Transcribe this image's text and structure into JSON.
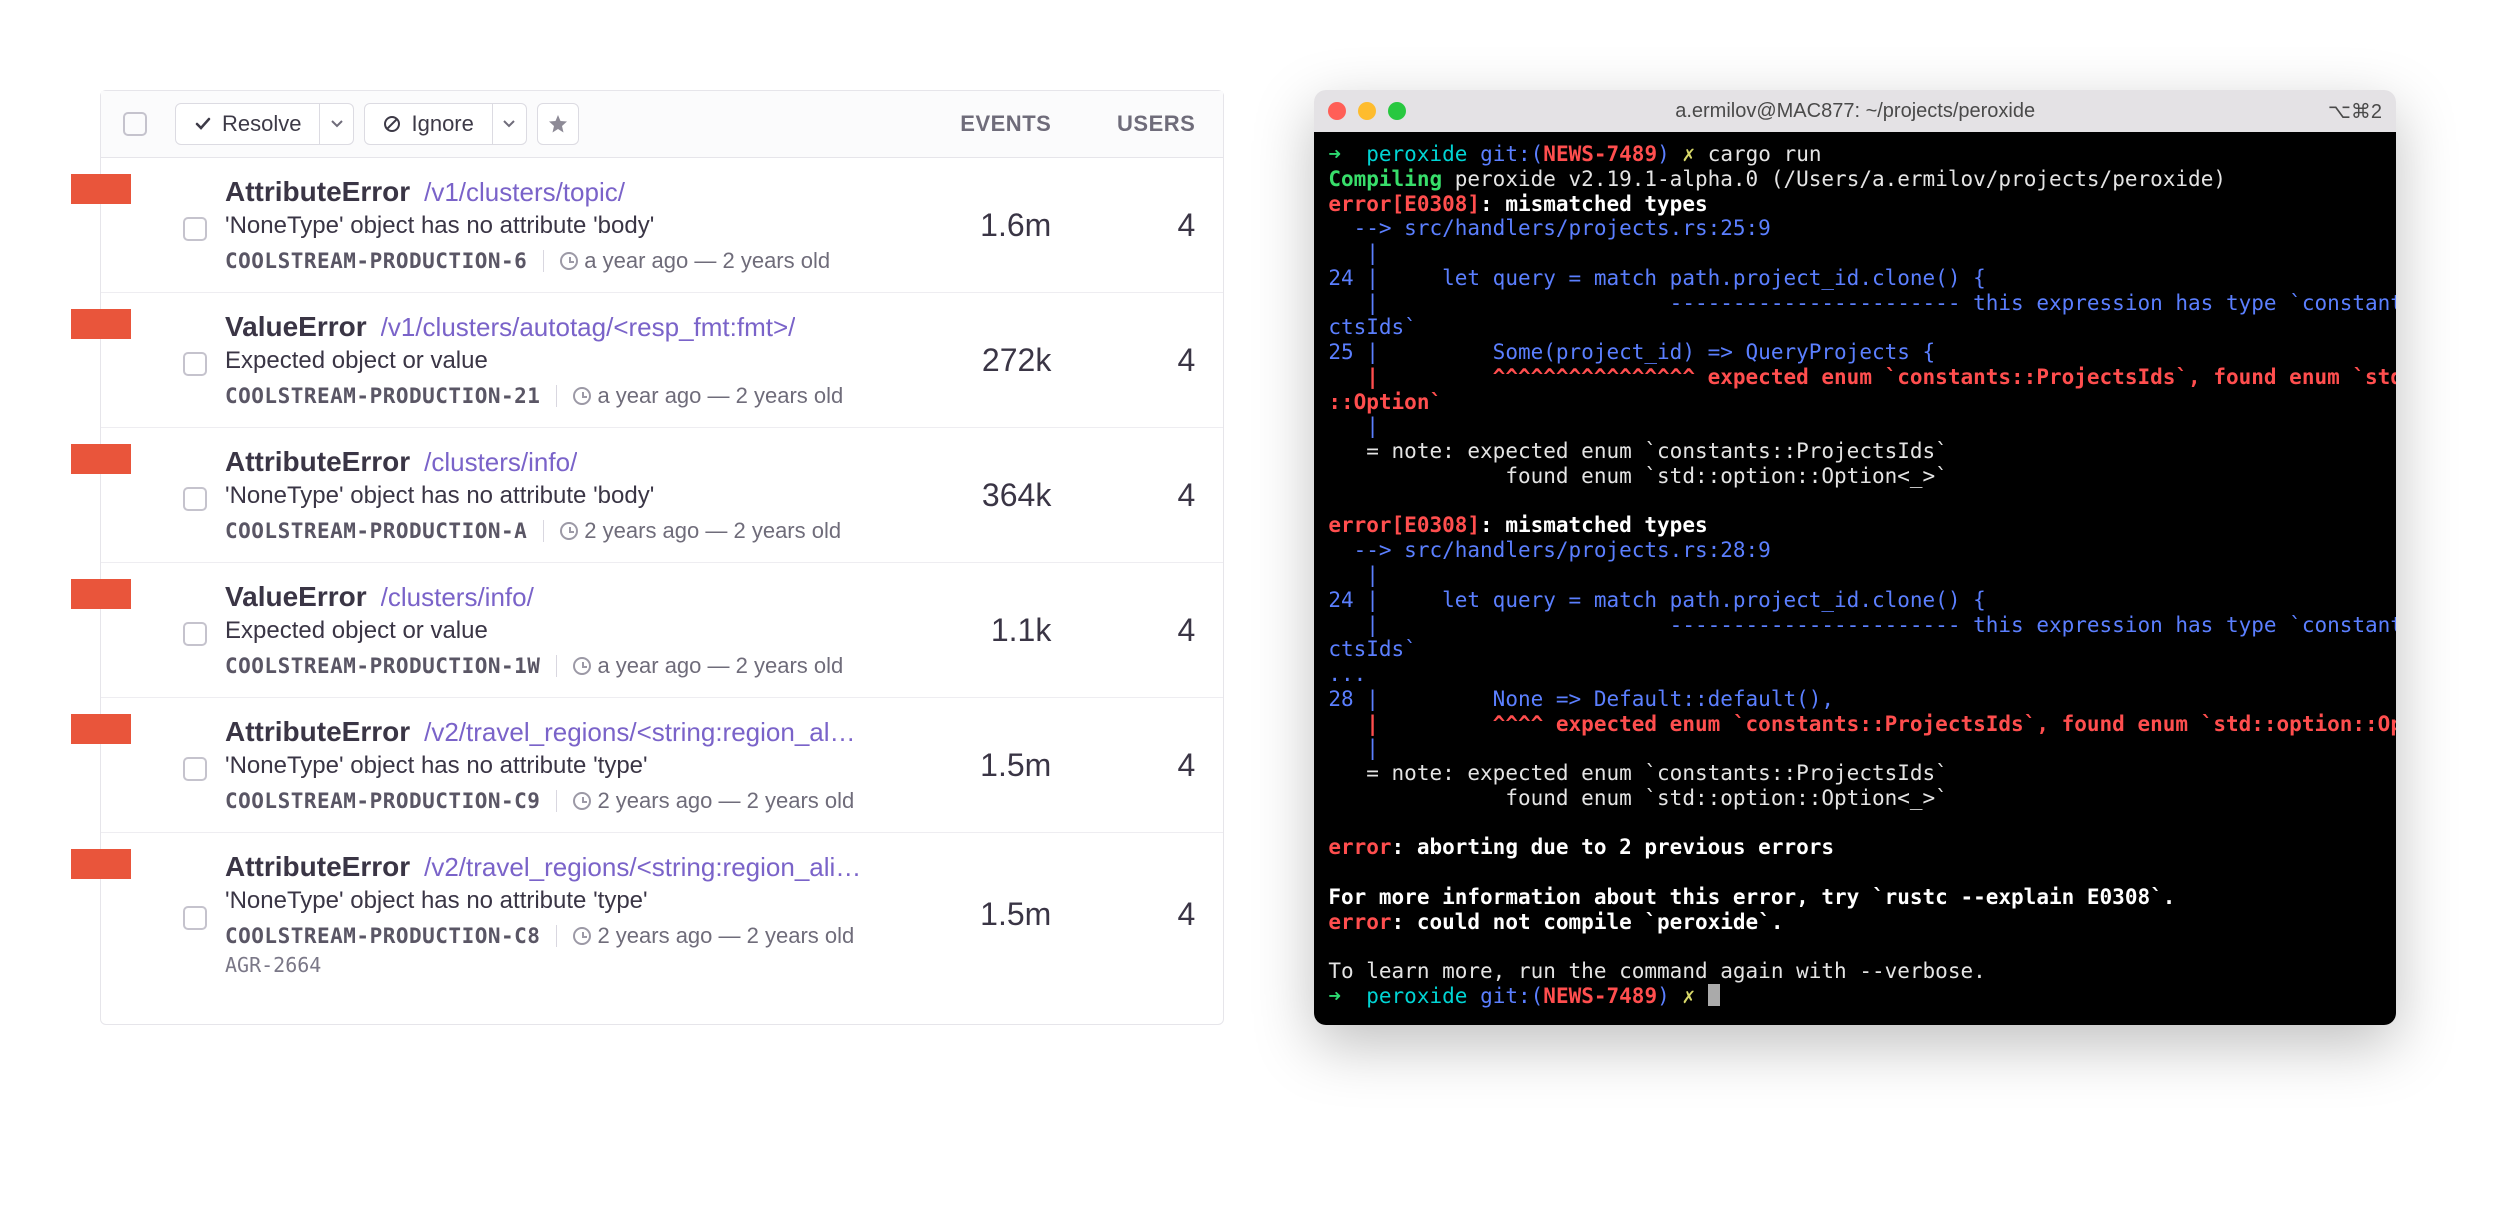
{
  "colors": {
    "red_bar": "#e9553b",
    "border": "#e6e5ea",
    "text_primary": "#3a3545",
    "text_muted": "#6f6c7a",
    "path_link": "#7a63c9",
    "term_bg": "#000000",
    "term_green": "#2cd96f",
    "term_cyan": "#00d4d4",
    "term_red": "#ff4e4e",
    "term_yellow": "#d9d96a",
    "term_blue": "#5b7fff",
    "dot_red": "#ff5f57",
    "dot_yellow": "#febc2e",
    "dot_green": "#28c840"
  },
  "left_panel": {
    "header": {
      "resolve_label": "Resolve",
      "ignore_label": "Ignore",
      "events_label": "EVENTS",
      "users_label": "USERS"
    },
    "issues": [
      {
        "error": "AttributeError",
        "path": "/v1/clusters/topic/",
        "message": "'NoneType' object has no attribute 'body'",
        "env": "COOLSTREAM-PRODUCTION-6",
        "time": "a year ago — 2 years old",
        "events": "1.6m",
        "users": "4"
      },
      {
        "error": "ValueError",
        "path": "/v1/clusters/autotag/<resp_fmt:fmt>/",
        "message": "Expected object or value",
        "env": "COOLSTREAM-PRODUCTION-21",
        "time": "a year ago — 2 years old",
        "events": "272k",
        "users": "4"
      },
      {
        "error": "AttributeError",
        "path": "/clusters/info/",
        "message": "'NoneType' object has no attribute 'body'",
        "env": "COOLSTREAM-PRODUCTION-A",
        "time": "2 years ago — 2 years old",
        "events": "364k",
        "users": "4"
      },
      {
        "error": "ValueError",
        "path": "/clusters/info/",
        "message": "Expected object or value",
        "env": "COOLSTREAM-PRODUCTION-1W",
        "time": "a year ago — 2 years old",
        "events": "1.1k",
        "users": "4"
      },
      {
        "error": "AttributeError",
        "path": "/v2/travel_regions/<string:region_al…",
        "message": "'NoneType' object has no attribute 'type'",
        "env": "COOLSTREAM-PRODUCTION-C9",
        "time": "2 years ago — 2 years old",
        "events": "1.5m",
        "users": "4"
      },
      {
        "error": "AttributeError",
        "path": "/v2/travel_regions/<string:region_ali…",
        "message": "'NoneType' object has no attribute 'type'",
        "env": "COOLSTREAM-PRODUCTION-C8",
        "time": "2 years ago — 2 years old",
        "events": "1.5m",
        "users": "4",
        "extra": "AGR-2664"
      }
    ]
  },
  "terminal": {
    "title": "a.ermilov@MAC877: ~/projects/peroxide",
    "shortcut": "⌥⌘2",
    "prompt_dir": "peroxide",
    "prompt_git": "git:",
    "prompt_branch": "NEWS-7489",
    "prompt_dirty": "✗",
    "cmd": "cargo run",
    "compiling_label": "Compiling",
    "compiling_rest": " peroxide v2.19.1-alpha.0 (/Users/a.ermilov/projects/peroxide)",
    "err_code": "error[E0308]",
    "err_msg": ": mismatched types",
    "loc1": "  --> src/handlers/projects.rs:25:9",
    "line24_a": "24 |     let query = match path.project_id.clone() {",
    "line24_b": "   |                       ----------------------- this expression has type `constants::Proje",
    "ctsids": "ctsIds`",
    "line25_a": "25 |         Some(project_id) => QueryProjects {",
    "line25_b": "   |         ^^^^^^^^^^^^^^^^ expected enum `constants::ProjectsIds`, found enum `std::option",
    "option": "::Option`",
    "note1": "   = note: expected enum `constants::ProjectsIds`",
    "note2": "              found enum `std::option::Option<_>`",
    "loc2": "  --> src/handlers/projects.rs:28:9",
    "line24_c": "24 |     let query = match path.project_id.clone() {",
    "line24_d": "   |                       ----------------------- this expression has type `constants::Proje",
    "dots": "...",
    "line28_a": "28 |         None => Default::default(),",
    "line28_b": "   |         ^^^^ expected enum `constants::ProjectsIds`, found enum `std::option::Option`",
    "abort": "error",
    "abort_rest": ": aborting due to 2 previous errors",
    "more_info": "For more information about this error, try `rustc --explain E0308`.",
    "compile_fail": "error",
    "compile_fail_rest": ": could not compile `peroxide`.",
    "learn_more": "To learn more, run the command again with --verbose."
  }
}
